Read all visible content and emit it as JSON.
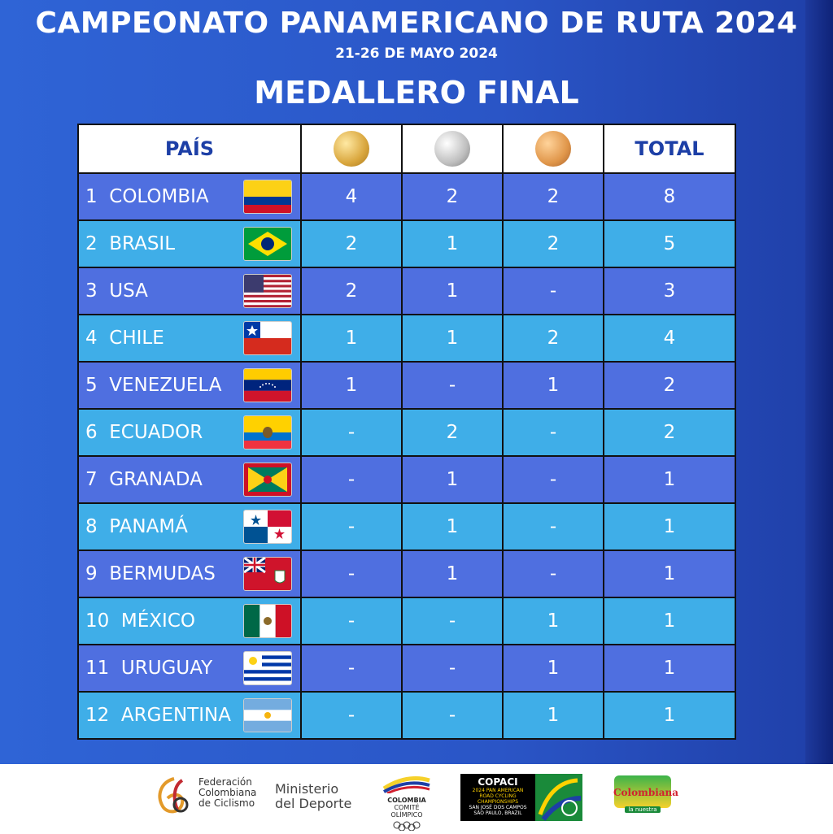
{
  "header": {
    "title": "CAMPEONATO PANAMERICANO DE RUTA 2024",
    "dates": "21-26 DE MAYO 2024",
    "heading": "MEDALLERO FINAL"
  },
  "table": {
    "col_country": "PAÍS",
    "col_total": "TOTAL",
    "medal_icons": [
      "gold-medal-icon",
      "silver-medal-icon",
      "bronze-medal-icon"
    ],
    "rows": [
      {
        "rank": "1",
        "name": "COLOMBIA",
        "gold": "4",
        "silver": "2",
        "bronze": "2",
        "total": "8",
        "flag": "colombia"
      },
      {
        "rank": "2",
        "name": "BRASIL",
        "gold": "2",
        "silver": "1",
        "bronze": "2",
        "total": "5",
        "flag": "brazil"
      },
      {
        "rank": "3",
        "name": "USA",
        "gold": "2",
        "silver": "1",
        "bronze": "-",
        "total": "3",
        "flag": "usa"
      },
      {
        "rank": "4",
        "name": "CHILE",
        "gold": "1",
        "silver": "1",
        "bronze": "2",
        "total": "4",
        "flag": "chile"
      },
      {
        "rank": "5",
        "name": "VENEZUELA",
        "gold": "1",
        "silver": "-",
        "bronze": "1",
        "total": "2",
        "flag": "venezuela"
      },
      {
        "rank": "6",
        "name": "ECUADOR",
        "gold": "-",
        "silver": "2",
        "bronze": "-",
        "total": "2",
        "flag": "ecuador"
      },
      {
        "rank": "7",
        "name": "GRANADA",
        "gold": "-",
        "silver": "1",
        "bronze": "-",
        "total": "1",
        "flag": "grenada"
      },
      {
        "rank": "8",
        "name": "PANAMÁ",
        "gold": "-",
        "silver": "1",
        "bronze": "-",
        "total": "1",
        "flag": "panama"
      },
      {
        "rank": "9",
        "name": "BERMUDAS",
        "gold": "-",
        "silver": "1",
        "bronze": "-",
        "total": "1",
        "flag": "bermuda"
      },
      {
        "rank": "10",
        "name": "MÉXICO",
        "gold": "-",
        "silver": "-",
        "bronze": "1",
        "total": "1",
        "flag": "mexico"
      },
      {
        "rank": "11",
        "name": "URUGUAY",
        "gold": "-",
        "silver": "-",
        "bronze": "1",
        "total": "1",
        "flag": "uruguay"
      },
      {
        "rank": "12",
        "name": "ARGENTINA",
        "gold": "-",
        "silver": "-",
        "bronze": "1",
        "total": "1",
        "flag": "argentina"
      }
    ]
  },
  "footer": {
    "fcc": [
      "Federación",
      "Colombiana",
      "de Ciclismo"
    ],
    "ministerio": [
      "Ministerio",
      "del Deporte"
    ],
    "coc": [
      "COLOMBIA",
      "COMITÉ OLÍMPICO"
    ],
    "copaci_title": "COPACI",
    "copaci_sub": [
      "2024 PAN AMERICAN",
      "ROAD CYCLING",
      "CHAMPIONSHIPS",
      "SAN JOSÉ DOS CAMPOS",
      "SÃO PAULO, BRAZIL"
    ],
    "colombiana": "Colombiana",
    "colombiana_tag": "la nuestra"
  },
  "colors": {
    "odd_row": "#4f6fe0",
    "even_row": "#3faee8",
    "header_text": "#1d3fa6"
  }
}
